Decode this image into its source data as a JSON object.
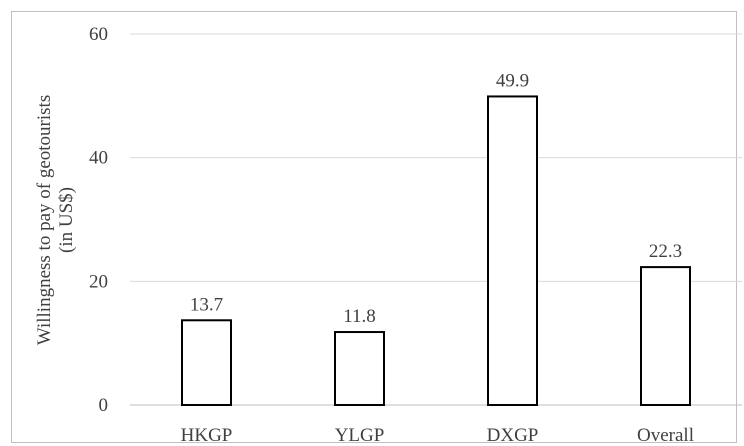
{
  "chart_data": {
    "type": "bar",
    "title": "",
    "xlabel": "",
    "ylabel_line1": "Willingness to pay of geotourists",
    "ylabel_line2": "(in US$)",
    "categories": [
      "HKGP",
      "YLGP",
      "DXGP",
      "Overall"
    ],
    "values": [
      13.7,
      11.8,
      49.9,
      22.3
    ],
    "data_labels": [
      "13.7",
      "11.8",
      "49.9",
      "22.3"
    ],
    "ylim": [
      0,
      60
    ],
    "yticks": [
      0,
      20,
      40,
      60
    ],
    "ytick_labels": [
      "0",
      "20",
      "40",
      "60"
    ],
    "grid": true,
    "legend": "none",
    "colors": {
      "bar_fill": "#ffffff",
      "bar_stroke": "#000000",
      "grid": "#d9d9d9",
      "text": "#404040"
    }
  }
}
